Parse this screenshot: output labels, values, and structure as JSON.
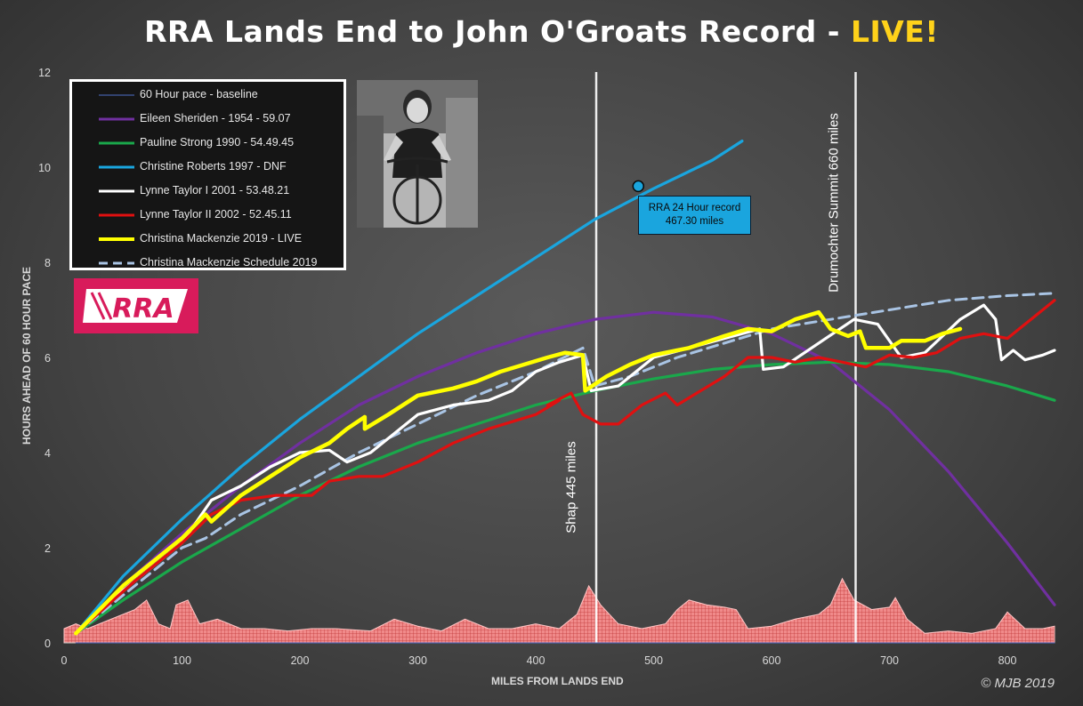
{
  "title": {
    "main": "RRA Lands End to John O'Groats Record - ",
    "live": "LIVE!"
  },
  "xaxis_title": "MILES FROM LANDS END",
  "yaxis_title": "HOURS AHEAD OF 60 HOUR PACE",
  "copyright": "© MJB 2019",
  "callout": {
    "line1": "RRA 24 Hour record",
    "line2": "467.30 miles"
  },
  "markers": {
    "shap": "Shap 445 miles",
    "drumochter": "Drumochter Summit 660 miles"
  },
  "logo_text": "RRA",
  "colors": {
    "baseline": "#4f6fc9",
    "eileen": "#7030a0",
    "pauline": "#1aa84b",
    "christine": "#1aa5de",
    "lynne1": "#ffffff",
    "lynne2": "#e01010",
    "christina_live": "#ffff00",
    "christina_schedule": "#a9c4e4",
    "elevation": "#f08a8a",
    "live_title": "#ffd21a"
  },
  "chart_data": {
    "type": "line",
    "title": "RRA Lands End to John O'Groats Record - LIVE!",
    "xlabel": "MILES FROM LANDS END",
    "ylabel": "HOURS AHEAD OF 60 HOUR PACE",
    "xlim": [
      0,
      840
    ],
    "ylim": [
      0,
      12
    ],
    "x_ticks": [
      "0",
      "100",
      "200",
      "300",
      "400",
      "500",
      "600",
      "700",
      "800"
    ],
    "y_ticks": [
      "0",
      "2",
      "4",
      "6",
      "8",
      "10",
      "12"
    ],
    "grid": false,
    "legend_position": "top-left",
    "series": [
      {
        "name": "60 Hour pace - baseline",
        "color_key": "baseline",
        "style": "thin",
        "points": [
          [
            10,
            0
          ],
          [
            840,
            0
          ]
        ]
      },
      {
        "name": "Eileen Sheriden - 1954 - 59.07",
        "color_key": "eileen",
        "style": "solid",
        "points": [
          [
            10,
            0.2
          ],
          [
            50,
            1.2
          ],
          [
            100,
            2.3
          ],
          [
            150,
            3.3
          ],
          [
            200,
            4.2
          ],
          [
            250,
            5.0
          ],
          [
            300,
            5.6
          ],
          [
            350,
            6.1
          ],
          [
            400,
            6.5
          ],
          [
            450,
            6.8
          ],
          [
            500,
            6.95
          ],
          [
            550,
            6.85
          ],
          [
            600,
            6.5
          ],
          [
            650,
            5.9
          ],
          [
            700,
            4.9
          ],
          [
            750,
            3.6
          ],
          [
            800,
            2.1
          ],
          [
            840,
            0.8
          ]
        ]
      },
      {
        "name": "Pauline Strong 1990 - 54.49.45",
        "color_key": "pauline",
        "style": "solid",
        "points": [
          [
            10,
            0.2
          ],
          [
            50,
            0.9
          ],
          [
            100,
            1.7
          ],
          [
            150,
            2.4
          ],
          [
            200,
            3.1
          ],
          [
            250,
            3.7
          ],
          [
            300,
            4.2
          ],
          [
            350,
            4.6
          ],
          [
            400,
            5.0
          ],
          [
            450,
            5.3
          ],
          [
            500,
            5.55
          ],
          [
            550,
            5.75
          ],
          [
            600,
            5.85
          ],
          [
            650,
            5.9
          ],
          [
            700,
            5.85
          ],
          [
            750,
            5.7
          ],
          [
            800,
            5.4
          ],
          [
            840,
            5.1
          ]
        ]
      },
      {
        "name": "Christine Roberts 1997 - DNF",
        "color_key": "christine",
        "style": "solid",
        "points": [
          [
            10,
            0.2
          ],
          [
            50,
            1.4
          ],
          [
            100,
            2.6
          ],
          [
            150,
            3.7
          ],
          [
            200,
            4.7
          ],
          [
            250,
            5.6
          ],
          [
            300,
            6.5
          ],
          [
            350,
            7.3
          ],
          [
            400,
            8.1
          ],
          [
            450,
            8.9
          ],
          [
            500,
            9.55
          ],
          [
            550,
            10.15
          ],
          [
            575,
            10.55
          ]
        ]
      },
      {
        "name": "Lynne Taylor I 2001 - 53.48.21",
        "color_key": "lynne1",
        "style": "solid",
        "points": [
          [
            10,
            0.2
          ],
          [
            50,
            1.1
          ],
          [
            100,
            2.1
          ],
          [
            125,
            3.0
          ],
          [
            150,
            3.3
          ],
          [
            175,
            3.7
          ],
          [
            200,
            4.0
          ],
          [
            225,
            4.05
          ],
          [
            240,
            3.8
          ],
          [
            260,
            4.0
          ],
          [
            300,
            4.8
          ],
          [
            330,
            5.0
          ],
          [
            360,
            5.1
          ],
          [
            380,
            5.3
          ],
          [
            400,
            5.7
          ],
          [
            420,
            5.9
          ],
          [
            440,
            6.05
          ],
          [
            447,
            5.3
          ],
          [
            470,
            5.4
          ],
          [
            500,
            6.0
          ],
          [
            530,
            6.2
          ],
          [
            560,
            6.4
          ],
          [
            590,
            6.6
          ],
          [
            593,
            5.75
          ],
          [
            610,
            5.8
          ],
          [
            640,
            6.3
          ],
          [
            670,
            6.8
          ],
          [
            690,
            6.7
          ],
          [
            710,
            6.0
          ],
          [
            730,
            6.1
          ],
          [
            760,
            6.8
          ],
          [
            780,
            7.1
          ],
          [
            790,
            6.8
          ],
          [
            795,
            5.95
          ],
          [
            805,
            6.15
          ],
          [
            815,
            5.95
          ],
          [
            830,
            6.05
          ],
          [
            840,
            6.15
          ]
        ]
      },
      {
        "name": "Lynne Taylor II 2002 - 52.45.11",
        "color_key": "lynne2",
        "style": "solid",
        "points": [
          [
            10,
            0.2
          ],
          [
            60,
            1.3
          ],
          [
            100,
            2.1
          ],
          [
            125,
            2.7
          ],
          [
            150,
            3.0
          ],
          [
            180,
            3.1
          ],
          [
            210,
            3.1
          ],
          [
            225,
            3.4
          ],
          [
            250,
            3.5
          ],
          [
            270,
            3.5
          ],
          [
            300,
            3.8
          ],
          [
            330,
            4.2
          ],
          [
            360,
            4.5
          ],
          [
            400,
            4.8
          ],
          [
            420,
            5.1
          ],
          [
            410,
            5.0
          ],
          [
            430,
            5.25
          ],
          [
            440,
            4.8
          ],
          [
            455,
            4.6
          ],
          [
            470,
            4.6
          ],
          [
            490,
            5.0
          ],
          [
            510,
            5.25
          ],
          [
            520,
            5.0
          ],
          [
            540,
            5.3
          ],
          [
            560,
            5.6
          ],
          [
            580,
            6.0
          ],
          [
            600,
            6.0
          ],
          [
            620,
            5.9
          ],
          [
            640,
            6.0
          ],
          [
            660,
            5.9
          ],
          [
            680,
            5.8
          ],
          [
            700,
            6.05
          ],
          [
            720,
            6.0
          ],
          [
            740,
            6.1
          ],
          [
            760,
            6.4
          ],
          [
            780,
            6.5
          ],
          [
            800,
            6.4
          ],
          [
            820,
            6.8
          ],
          [
            840,
            7.2
          ]
        ]
      },
      {
        "name": "Christina Mackenzie 2019 - LIVE",
        "color_key": "christina_live",
        "style": "thick",
        "points": [
          [
            10,
            0.2
          ],
          [
            50,
            1.2
          ],
          [
            100,
            2.2
          ],
          [
            120,
            2.7
          ],
          [
            125,
            2.55
          ],
          [
            150,
            3.1
          ],
          [
            175,
            3.5
          ],
          [
            200,
            3.9
          ],
          [
            225,
            4.2
          ],
          [
            240,
            4.5
          ],
          [
            255,
            4.75
          ],
          [
            255,
            4.5
          ],
          [
            275,
            4.8
          ],
          [
            300,
            5.2
          ],
          [
            330,
            5.35
          ],
          [
            350,
            5.5
          ],
          [
            370,
            5.7
          ],
          [
            390,
            5.85
          ],
          [
            410,
            6.0
          ],
          [
            425,
            6.1
          ],
          [
            440,
            6.05
          ],
          [
            442,
            5.3
          ],
          [
            460,
            5.6
          ],
          [
            480,
            5.85
          ],
          [
            500,
            6.05
          ],
          [
            530,
            6.2
          ],
          [
            560,
            6.45
          ],
          [
            580,
            6.6
          ],
          [
            600,
            6.55
          ],
          [
            620,
            6.8
          ],
          [
            640,
            6.95
          ],
          [
            650,
            6.6
          ],
          [
            665,
            6.45
          ],
          [
            675,
            6.55
          ],
          [
            680,
            6.2
          ],
          [
            700,
            6.2
          ],
          [
            710,
            6.35
          ],
          [
            730,
            6.35
          ],
          [
            745,
            6.5
          ],
          [
            760,
            6.6
          ]
        ]
      },
      {
        "name": "Christina Mackenzie Schedule 2019",
        "color_key": "christina_schedule",
        "style": "dashed",
        "points": [
          [
            10,
            0.2
          ],
          [
            60,
            1.2
          ],
          [
            100,
            2.0
          ],
          [
            120,
            2.2
          ],
          [
            150,
            2.7
          ],
          [
            200,
            3.3
          ],
          [
            250,
            4.0
          ],
          [
            300,
            4.6
          ],
          [
            350,
            5.2
          ],
          [
            400,
            5.7
          ],
          [
            440,
            6.2
          ],
          [
            450,
            5.4
          ],
          [
            480,
            5.6
          ],
          [
            520,
            6.0
          ],
          [
            560,
            6.3
          ],
          [
            600,
            6.6
          ],
          [
            650,
            6.8
          ],
          [
            700,
            7.0
          ],
          [
            750,
            7.2
          ],
          [
            800,
            7.3
          ],
          [
            840,
            7.35
          ]
        ]
      }
    ],
    "elevation_profile": {
      "name": "route elevation (relative)",
      "points": [
        [
          0,
          0.3
        ],
        [
          10,
          0.4
        ],
        [
          20,
          0.3
        ],
        [
          40,
          0.5
        ],
        [
          60,
          0.7
        ],
        [
          70,
          0.9
        ],
        [
          80,
          0.4
        ],
        [
          90,
          0.3
        ],
        [
          95,
          0.8
        ],
        [
          105,
          0.9
        ],
        [
          115,
          0.4
        ],
        [
          130,
          0.5
        ],
        [
          150,
          0.3
        ],
        [
          170,
          0.3
        ],
        [
          190,
          0.25
        ],
        [
          210,
          0.3
        ],
        [
          230,
          0.3
        ],
        [
          260,
          0.25
        ],
        [
          280,
          0.5
        ],
        [
          300,
          0.35
        ],
        [
          320,
          0.25
        ],
        [
          340,
          0.5
        ],
        [
          360,
          0.3
        ],
        [
          380,
          0.3
        ],
        [
          400,
          0.4
        ],
        [
          420,
          0.3
        ],
        [
          435,
          0.6
        ],
        [
          445,
          1.2
        ],
        [
          455,
          0.8
        ],
        [
          470,
          0.4
        ],
        [
          490,
          0.3
        ],
        [
          510,
          0.4
        ],
        [
          520,
          0.7
        ],
        [
          530,
          0.9
        ],
        [
          545,
          0.8
        ],
        [
          560,
          0.75
        ],
        [
          570,
          0.7
        ],
        [
          580,
          0.3
        ],
        [
          600,
          0.35
        ],
        [
          620,
          0.5
        ],
        [
          640,
          0.6
        ],
        [
          650,
          0.8
        ],
        [
          660,
          1.35
        ],
        [
          670,
          0.9
        ],
        [
          685,
          0.7
        ],
        [
          700,
          0.75
        ],
        [
          705,
          0.95
        ],
        [
          715,
          0.5
        ],
        [
          730,
          0.2
        ],
        [
          750,
          0.25
        ],
        [
          770,
          0.2
        ],
        [
          790,
          0.3
        ],
        [
          800,
          0.65
        ],
        [
          815,
          0.3
        ],
        [
          830,
          0.3
        ],
        [
          840,
          0.35
        ]
      ]
    },
    "markers": [
      {
        "label": "Shap 445 miles",
        "x": 440
      },
      {
        "label": "Drumochter Summit 660 miles",
        "x": 660
      }
    ],
    "point_annotation": {
      "label": "RRA 24 Hour record 467.30 miles",
      "x": 487,
      "y": 9.6
    }
  }
}
